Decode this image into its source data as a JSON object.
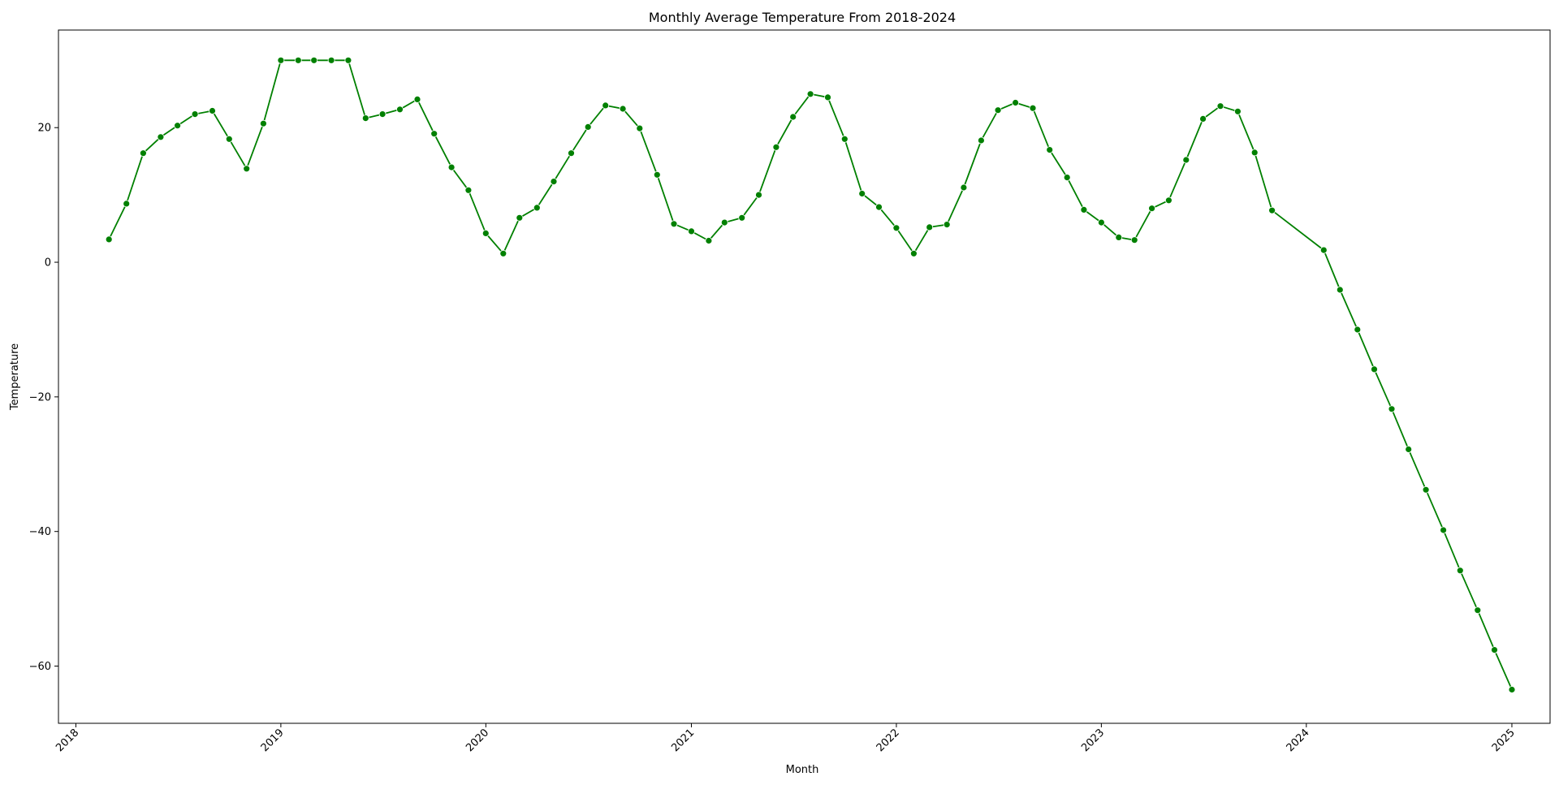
{
  "chart_data": {
    "type": "line",
    "title": "Monthly Average Temperature From 2018-2024",
    "xlabel": "Month",
    "ylabel": "Temperature",
    "xlim": [
      "2017-12-01",
      "2025-03-10"
    ],
    "ylim": [
      -68.5,
      34.5
    ],
    "x_ticks": [
      "2018",
      "2019",
      "2020",
      "2021",
      "2022",
      "2023",
      "2024",
      "2025"
    ],
    "y_ticks": [
      20,
      0,
      -20,
      -40,
      -60
    ],
    "y_tick_labels": [
      "20",
      "0",
      "−20",
      "−40",
      "−60"
    ],
    "grid": false,
    "line_color": "#008000",
    "marker": "circle",
    "series": [
      {
        "x": [
          "2018-03-01",
          "2018-04-01",
          "2018-05-01",
          "2018-06-01",
          "2018-07-01",
          "2018-08-01",
          "2018-09-01",
          "2018-10-01",
          "2018-11-01",
          "2018-12-01",
          "2019-01-01",
          "2019-02-01",
          "2019-03-01",
          "2019-04-01",
          "2019-05-01",
          "2019-06-01",
          "2019-07-01",
          "2019-08-01",
          "2019-09-01",
          "2019-10-01",
          "2019-11-01",
          "2019-12-01",
          "2020-01-01",
          "2020-02-01",
          "2020-03-01",
          "2020-04-01",
          "2020-05-01",
          "2020-06-01",
          "2020-07-01",
          "2020-08-01",
          "2020-09-01",
          "2020-10-01",
          "2020-11-01",
          "2020-12-01",
          "2021-01-01",
          "2021-02-01",
          "2021-03-01",
          "2021-04-01",
          "2021-05-01",
          "2021-06-01",
          "2021-07-01",
          "2021-08-01",
          "2021-09-01",
          "2021-10-01",
          "2021-11-01",
          "2021-12-01",
          "2022-01-01",
          "2022-02-01",
          "2022-03-01",
          "2022-04-01",
          "2022-05-01",
          "2022-06-01",
          "2022-07-01",
          "2022-08-01",
          "2022-09-01",
          "2022-10-01",
          "2022-11-01",
          "2022-12-01",
          "2023-01-01",
          "2023-02-01",
          "2023-03-01",
          "2023-04-01",
          "2023-05-01",
          "2023-06-01",
          "2023-07-01",
          "2023-08-01",
          "2023-09-01",
          "2023-10-01",
          "2023-11-01",
          "2024-02-01",
          "2024-03-01",
          "2024-04-01",
          "2024-05-01",
          "2024-06-01",
          "2024-07-01",
          "2024-08-01",
          "2024-09-01",
          "2024-10-01",
          "2024-11-01",
          "2024-12-01",
          "2025-01-01"
        ],
        "y": [
          3.4,
          8.7,
          16.2,
          18.6,
          20.3,
          22.0,
          22.5,
          18.3,
          13.9,
          20.6,
          30.0,
          30.0,
          30.0,
          30.0,
          30.0,
          21.4,
          22.0,
          22.7,
          24.2,
          19.1,
          14.1,
          10.7,
          4.3,
          1.3,
          6.6,
          8.1,
          12.0,
          16.2,
          20.1,
          23.3,
          22.8,
          19.9,
          13.0,
          5.7,
          4.6,
          3.2,
          5.9,
          6.6,
          10.0,
          17.1,
          21.6,
          25.0,
          24.5,
          18.3,
          10.2,
          8.2,
          5.1,
          1.3,
          5.2,
          5.6,
          11.1,
          18.1,
          22.6,
          23.7,
          22.9,
          16.7,
          12.6,
          7.8,
          5.9,
          3.7,
          3.3,
          8.0,
          9.2,
          15.2,
          21.3,
          23.2,
          22.4,
          16.3,
          7.7,
          1.8,
          -4.1,
          -10.0,
          -15.9,
          -21.8,
          -27.8,
          -33.8,
          -39.8,
          -45.8,
          -51.7,
          -57.6,
          -63.5
        ]
      }
    ]
  }
}
